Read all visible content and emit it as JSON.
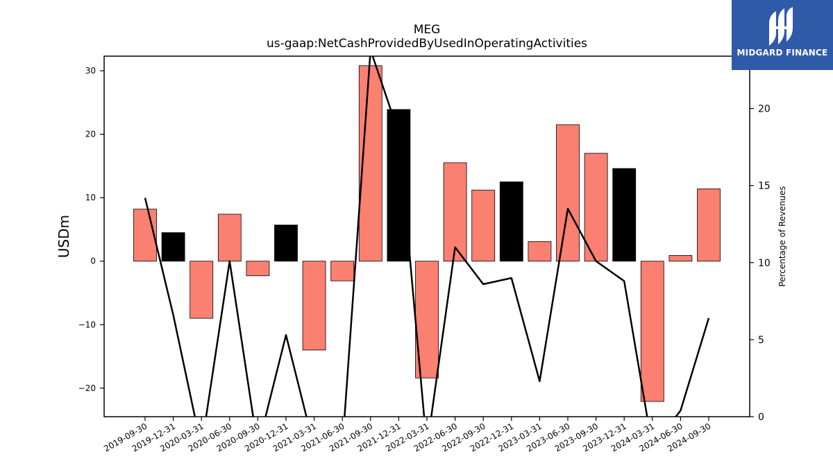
{
  "chart_data": {
    "type": "bar+line",
    "title": "MEG",
    "subtitle": "us-gaap:NetCashProvidedByUsedInOperatingActivities",
    "ylabel": "USDm",
    "y2label": "Percentage of Revenues",
    "ylim": [
      -24.5,
      32.3
    ],
    "y2lim": [
      0,
      23.4
    ],
    "yticks": [
      -20,
      -10,
      0,
      10,
      20,
      30
    ],
    "y2ticks": [
      0,
      5,
      10,
      15,
      20
    ],
    "categories": [
      "2019-09-30",
      "2019-12-31",
      "2020-03-31",
      "2020-06-30",
      "2020-09-30",
      "2020-12-31",
      "2021-03-31",
      "2021-06-30",
      "2021-09-30",
      "2021-12-31",
      "2022-03-31",
      "2022-06-30",
      "2022-09-30",
      "2022-12-31",
      "2023-03-31",
      "2023-06-30",
      "2023-09-30",
      "2023-12-31",
      "2024-03-31",
      "2024-06-30",
      "2024-09-30"
    ],
    "bars": {
      "values": [
        8.2,
        4.5,
        -9.0,
        7.4,
        -2.3,
        5.7,
        -14.0,
        -3.1,
        30.8,
        23.9,
        -18.4,
        15.5,
        11.2,
        12.5,
        3.1,
        21.5,
        17.0,
        14.6,
        -22.1,
        0.9,
        11.4
      ],
      "colors": [
        "#fa8072",
        "#000000",
        "#fa8072",
        "#fa8072",
        "#fa8072",
        "#000000",
        "#fa8072",
        "#fa8072",
        "#fa8072",
        "#000000",
        "#fa8072",
        "#fa8072",
        "#fa8072",
        "#000000",
        "#fa8072",
        "#fa8072",
        "#fa8072",
        "#000000",
        "#fa8072",
        "#fa8072",
        "#fa8072"
      ]
    },
    "line": {
      "values": [
        14.2,
        6.6,
        -2.0,
        10.1,
        -2.0,
        5.3,
        -2.0,
        -2.0,
        23.8,
        18.4,
        -2.0,
        11.0,
        8.6,
        9.0,
        2.3,
        13.5,
        10.1,
        8.8,
        -2.0,
        0.4,
        6.4
      ],
      "color": "#000000"
    },
    "grid": false,
    "legend": "none"
  },
  "logo": {
    "text": "MIDGARD FINANCE",
    "color": "#2f5aa8"
  }
}
